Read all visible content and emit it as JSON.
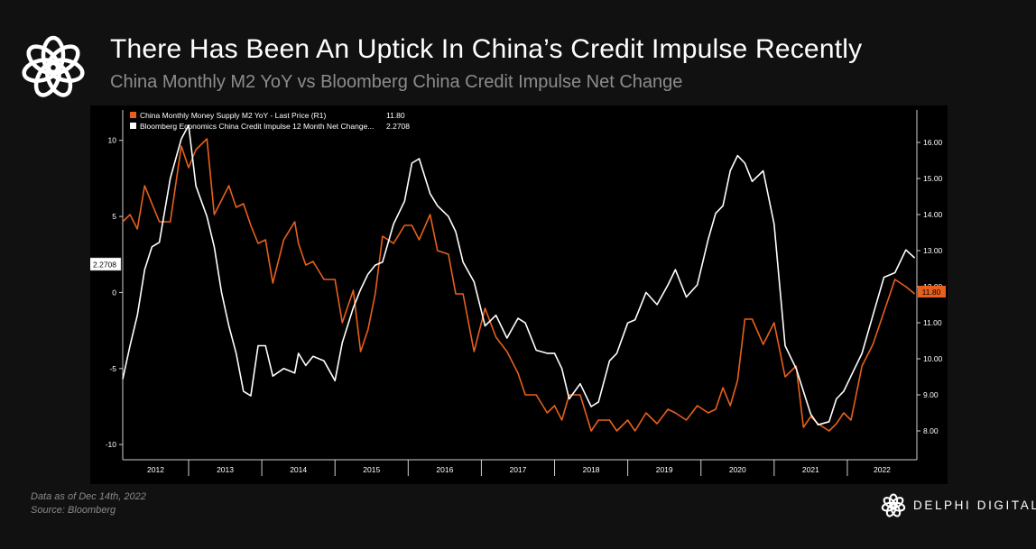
{
  "header": {
    "title": "There Has Been An Uptick In China’s Credit Impulse Recently",
    "subtitle": "China Monthly M2 YoY vs Bloomberg China Credit Impulse Net Change"
  },
  "footer": {
    "note_line1": "Data as of Dec 14th, 2022",
    "note_line2": "Source: Bloomberg",
    "brand": "DELPHI DIGITAL"
  },
  "icons": {
    "logo": "flower-logo-icon",
    "brand_logo": "flower-logo-icon"
  },
  "chart_data": {
    "type": "line",
    "background": "#000000",
    "grid": false,
    "legend_position": "top-left",
    "x_tick_labels": [
      "2012",
      "2013",
      "2014",
      "2015",
      "2016",
      "2017",
      "2018",
      "2019",
      "2020",
      "2021",
      "2022"
    ],
    "xlim": [
      2012.1,
      2022.95
    ],
    "left_axis": {
      "ticks": [
        "10",
        "5",
        "0",
        "-5",
        "-10"
      ],
      "tick_values": [
        10,
        5,
        0,
        -5,
        -10
      ],
      "ylim": [
        -11,
        12
      ],
      "last_value_label": "2.2708"
    },
    "right_axis": {
      "ticks": [
        "16.00",
        "15.00",
        "14.00",
        "13.00",
        "12.00",
        "11.00",
        "10.00",
        "9.00",
        "8.00"
      ],
      "tick_values": [
        16,
        15,
        14,
        13,
        12,
        11,
        10,
        9,
        8
      ],
      "ylim": [
        7.2,
        16.9
      ],
      "last_value_label": "11.80"
    },
    "legend": [
      {
        "label": "China Monthly Money Supply M2 YoY - Last Price (R1)",
        "value": "11.80",
        "color": "#e8601c"
      },
      {
        "label": "Bloomberg Economics China Credit Impulse 12 Month Net Change...",
        "value": "2.2708",
        "color": "#ffffff"
      }
    ],
    "series": [
      {
        "name": "China Monthly Money Supply M2 YoY - Last Price (R1)",
        "axis": "right",
        "color": "#e8601c",
        "x": [
          2012.1,
          2012.2,
          2012.3,
          2012.4,
          2012.5,
          2012.6,
          2012.75,
          2012.9,
          2013.0,
          2013.1,
          2013.25,
          2013.35,
          2013.45,
          2013.55,
          2013.65,
          2013.75,
          2013.85,
          2013.95,
          2014.05,
          2014.15,
          2014.3,
          2014.45,
          2014.5,
          2014.6,
          2014.7,
          2014.85,
          2015.0,
          2015.1,
          2015.25,
          2015.35,
          2015.45,
          2015.55,
          2015.65,
          2015.8,
          2015.95,
          2016.05,
          2016.15,
          2016.3,
          2016.4,
          2016.55,
          2016.65,
          2016.75,
          2016.9,
          2017.05,
          2017.2,
          2017.35,
          2017.5,
          2017.6,
          2017.75,
          2017.9,
          2018.0,
          2018.1,
          2018.2,
          2018.35,
          2018.5,
          2018.6,
          2018.75,
          2018.85,
          2019.0,
          2019.1,
          2019.25,
          2019.4,
          2019.55,
          2019.65,
          2019.8,
          2019.95,
          2020.1,
          2020.2,
          2020.3,
          2020.4,
          2020.5,
          2020.6,
          2020.7,
          2020.85,
          2021.0,
          2021.15,
          2021.3,
          2021.4,
          2021.5,
          2021.6,
          2021.75,
          2021.85,
          2021.95,
          2022.05,
          2022.2,
          2022.35,
          2022.5,
          2022.65,
          2022.8,
          2022.92
        ],
        "values": [
          13.8,
          14.0,
          13.6,
          14.8,
          14.3,
          13.8,
          13.8,
          15.9,
          15.3,
          15.8,
          16.1,
          14.0,
          14.4,
          14.8,
          14.2,
          14.3,
          13.7,
          13.2,
          13.3,
          12.1,
          13.3,
          13.8,
          13.2,
          12.6,
          12.7,
          12.2,
          12.2,
          11.0,
          11.9,
          10.2,
          10.8,
          11.8,
          13.4,
          13.2,
          13.7,
          13.7,
          13.3,
          14.0,
          13.0,
          12.9,
          11.8,
          11.8,
          10.2,
          11.4,
          10.6,
          10.2,
          9.6,
          9.0,
          9.0,
          8.5,
          8.7,
          8.3,
          9.0,
          9.0,
          8.0,
          8.3,
          8.3,
          8.0,
          8.3,
          8.0,
          8.5,
          8.2,
          8.6,
          8.5,
          8.3,
          8.7,
          8.5,
          8.6,
          9.2,
          8.7,
          9.4,
          11.1,
          11.1,
          10.4,
          11.0,
          9.5,
          9.8,
          8.1,
          8.4,
          8.2,
          8.0,
          8.2,
          8.5,
          8.3,
          9.8,
          10.4,
          11.3,
          12.2,
          12.0,
          11.8
        ]
      },
      {
        "name": "Bloomberg Economics China Credit Impulse 12 Month Net Change...",
        "axis": "left",
        "color": "#ffffff",
        "x": [
          2012.1,
          2012.2,
          2012.3,
          2012.4,
          2012.5,
          2012.6,
          2012.75,
          2012.9,
          2013.0,
          2013.1,
          2013.25,
          2013.35,
          2013.45,
          2013.55,
          2013.65,
          2013.75,
          2013.85,
          2013.95,
          2014.05,
          2014.15,
          2014.3,
          2014.45,
          2014.5,
          2014.6,
          2014.7,
          2014.85,
          2015.0,
          2015.1,
          2015.25,
          2015.35,
          2015.45,
          2015.55,
          2015.65,
          2015.8,
          2015.95,
          2016.05,
          2016.15,
          2016.3,
          2016.4,
          2016.55,
          2016.65,
          2016.75,
          2016.9,
          2017.05,
          2017.2,
          2017.35,
          2017.5,
          2017.6,
          2017.75,
          2017.9,
          2018.0,
          2018.1,
          2018.2,
          2018.35,
          2018.5,
          2018.6,
          2018.75,
          2018.85,
          2019.0,
          2019.1,
          2019.25,
          2019.4,
          2019.55,
          2019.65,
          2019.8,
          2019.95,
          2020.1,
          2020.2,
          2020.3,
          2020.4,
          2020.5,
          2020.6,
          2020.7,
          2020.85,
          2021.0,
          2021.15,
          2021.3,
          2021.4,
          2021.5,
          2021.6,
          2021.75,
          2021.85,
          2021.95,
          2022.05,
          2022.2,
          2022.35,
          2022.5,
          2022.65,
          2022.8,
          2022.92
        ],
        "values": [
          -5.7,
          -3.5,
          -1.5,
          1.5,
          3.0,
          3.3,
          7.5,
          10.1,
          11.0,
          7.0,
          5.0,
          3.0,
          0.0,
          -2.2,
          -4.0,
          -6.5,
          -6.8,
          -3.5,
          -3.5,
          -5.5,
          -5.0,
          -5.3,
          -4.0,
          -4.8,
          -4.2,
          -4.5,
          -5.8,
          -3.3,
          -1.0,
          0.2,
          1.2,
          1.8,
          2.0,
          4.5,
          6.0,
          8.5,
          8.8,
          6.5,
          5.7,
          5.0,
          4.0,
          2.0,
          0.7,
          -2.2,
          -1.5,
          -3.0,
          -1.7,
          -2.0,
          -3.8,
          -4.0,
          -4.0,
          -5.0,
          -7.0,
          -6.0,
          -7.5,
          -7.2,
          -4.5,
          -4.0,
          -2.0,
          -1.8,
          0.0,
          -0.8,
          0.5,
          1.5,
          -0.3,
          0.5,
          3.5,
          5.2,
          5.7,
          8.0,
          9.0,
          8.5,
          7.3,
          8.0,
          4.5,
          -3.5,
          -5.0,
          -6.5,
          -8.0,
          -8.7,
          -8.5,
          -7.0,
          -6.5,
          -5.5,
          -4.0,
          -1.5,
          1.0,
          1.3,
          2.8,
          2.2708
        ]
      }
    ]
  }
}
